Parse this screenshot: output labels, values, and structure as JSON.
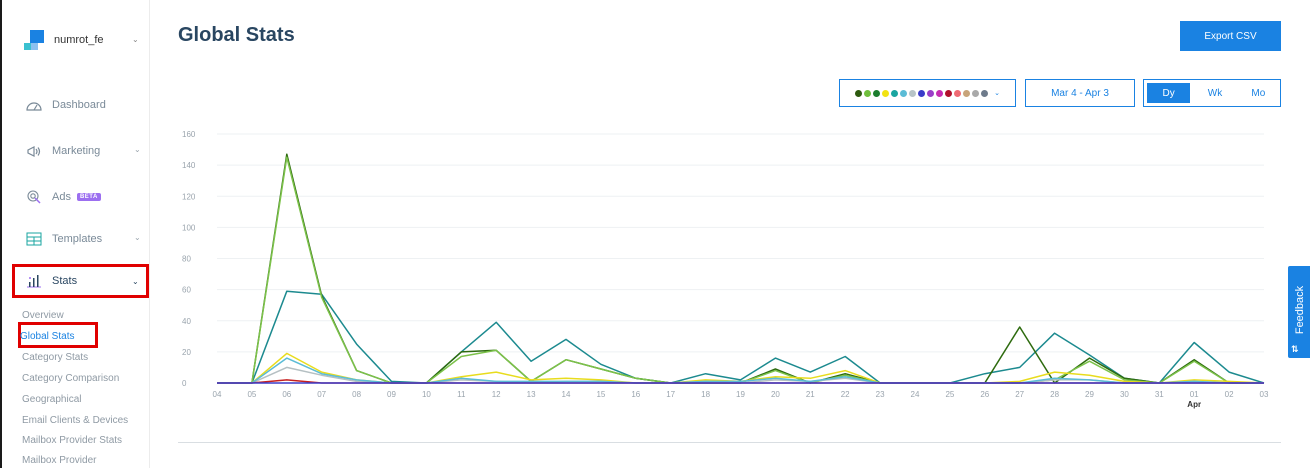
{
  "account": {
    "name": "numrot_fe"
  },
  "sidebar": {
    "items": [
      {
        "label": "Dashboard"
      },
      {
        "label": "Marketing"
      },
      {
        "label": "Ads",
        "badge": "BETA"
      },
      {
        "label": "Templates"
      },
      {
        "label": "Stats"
      }
    ],
    "stats_sub": [
      {
        "label": "Overview"
      },
      {
        "label": "Global Stats"
      },
      {
        "label": "Category Stats"
      },
      {
        "label": "Category Comparison"
      },
      {
        "label": "Geographical"
      },
      {
        "label": "Email Clients & Devices"
      },
      {
        "label": "Mailbox Provider Stats"
      },
      {
        "label": "Mailbox Provider"
      }
    ]
  },
  "page": {
    "title": "Global Stats"
  },
  "toolbar": {
    "export_label": "Export CSV",
    "date_range": "Mar 4 - Apr 3",
    "granularity": [
      "Dy",
      "Wk",
      "Mo"
    ],
    "swatches": [
      "#2d5a0e",
      "#6fbf3c",
      "#1c7d2e",
      "#f2e313",
      "#1aa5a0",
      "#5bbcd6",
      "#b7c4c7",
      "#3a3cc9",
      "#9b3fc8",
      "#c62db1",
      "#b0102a",
      "#ef6a73",
      "#c8a47a",
      "#a9a9a9",
      "#6e7b8b"
    ]
  },
  "feedback": {
    "label": "Feedback"
  },
  "colors": {
    "accent": "#1a82e2",
    "heading": "#294661",
    "highlight": "#e00000"
  },
  "chart_data": {
    "type": "line",
    "x": [
      "04",
      "05",
      "06",
      "07",
      "08",
      "09",
      "10",
      "11",
      "12",
      "13",
      "14",
      "15",
      "16",
      "17",
      "18",
      "19",
      "20",
      "21",
      "22",
      "23",
      "24",
      "25",
      "26",
      "27",
      "28",
      "29",
      "30",
      "31",
      "01",
      "02",
      "03"
    ],
    "x_sublabel": {
      "index": 28,
      "text": "Apr"
    },
    "ylim": [
      0,
      160
    ],
    "yticks": [
      0,
      20,
      40,
      60,
      80,
      100,
      120,
      140,
      160
    ],
    "grid": true,
    "series": [
      {
        "color": "#1c8a8f",
        "values": [
          0,
          0,
          59,
          57,
          25,
          1,
          0,
          20,
          39,
          14,
          28,
          12,
          3,
          0,
          6,
          2,
          16,
          7,
          17,
          0,
          0,
          0,
          6,
          10,
          32,
          18,
          3,
          0,
          26,
          7,
          0
        ]
      },
      {
        "color": "#2e6b0f",
        "values": [
          0,
          0,
          147,
          56,
          8,
          0,
          0,
          20,
          21,
          1,
          15,
          9,
          3,
          0,
          0,
          0,
          9,
          0,
          6,
          0,
          0,
          0,
          0,
          36,
          0,
          16,
          3,
          0,
          15,
          0,
          0
        ]
      },
      {
        "color": "#7cc24a",
        "values": [
          0,
          0,
          145,
          55,
          8,
          0,
          0,
          17,
          21,
          1,
          15,
          9,
          3,
          0,
          0,
          0,
          8,
          0,
          5,
          0,
          0,
          0,
          0,
          0,
          2,
          14,
          2,
          0,
          14,
          0,
          0
        ]
      },
      {
        "color": "#e8dc1d",
        "values": [
          0,
          0,
          19,
          7,
          2,
          0,
          0,
          4,
          7,
          2,
          3,
          2,
          0,
          0,
          2,
          1,
          4,
          3,
          8,
          0,
          0,
          0,
          0,
          1,
          7,
          5,
          1,
          0,
          2,
          1,
          0
        ]
      },
      {
        "color": "#b5c0c3",
        "values": [
          0,
          0,
          10,
          5,
          1,
          0,
          0,
          2,
          1,
          0,
          1,
          1,
          0,
          0,
          1,
          0,
          2,
          1,
          3,
          0,
          0,
          0,
          0,
          0,
          2,
          2,
          0,
          0,
          1,
          0,
          0
        ]
      },
      {
        "color": "#5bbcd6",
        "values": [
          0,
          0,
          16,
          6,
          2,
          0,
          0,
          3,
          1,
          1,
          1,
          1,
          0,
          0,
          1,
          1,
          3,
          1,
          4,
          0,
          0,
          0,
          0,
          0,
          3,
          2,
          0,
          0,
          1,
          0,
          0
        ]
      },
      {
        "color": "#c62020",
        "values": [
          0,
          0,
          2,
          0,
          0,
          0,
          0,
          0,
          0,
          0,
          0,
          0,
          0,
          0,
          0,
          0,
          0,
          0,
          0,
          0,
          0,
          0,
          0,
          0,
          0,
          0,
          0,
          0,
          0,
          0,
          0
        ]
      },
      {
        "color": "#3a3cc9",
        "values": [
          0,
          0,
          0,
          0,
          0,
          0,
          0,
          0,
          0,
          0,
          0,
          0,
          0,
          0,
          0,
          0,
          0,
          0,
          0,
          0,
          0,
          0,
          0,
          0,
          0,
          0,
          0,
          0,
          0,
          0,
          0
        ]
      }
    ]
  }
}
